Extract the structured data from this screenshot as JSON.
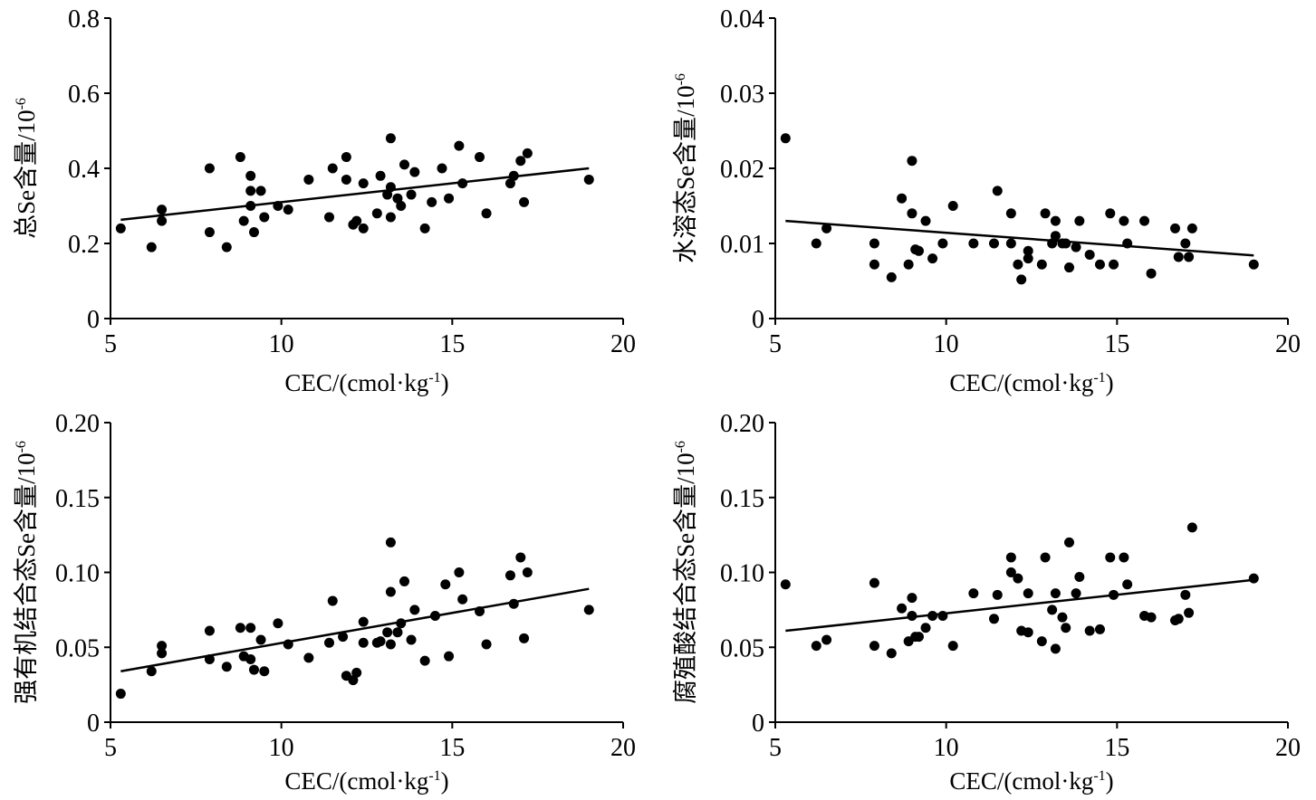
{
  "chart_data": [
    {
      "type": "scatter",
      "xlabel": "CEC/(cmol·kg",
      "xlabel_sup": "-1",
      "xlabel_end": ")",
      "ylabel": "总Se含量/10",
      "ylabel_sup": "-6",
      "xlim": [
        5,
        20
      ],
      "ylim": [
        0,
        0.8
      ],
      "xticks": [
        "5",
        "10",
        "15",
        "20"
      ],
      "yticks": [
        "0",
        "0.2",
        "0.4",
        "0.6",
        "0.8"
      ],
      "ytick_values": [
        0,
        0.2,
        0.4,
        0.6,
        0.8
      ],
      "trendline": {
        "x": [
          5.3,
          19.0
        ],
        "y": [
          0.263,
          0.4
        ]
      },
      "points": [
        [
          5.3,
          0.24
        ],
        [
          6.2,
          0.19
        ],
        [
          6.5,
          0.29
        ],
        [
          6.5,
          0.26
        ],
        [
          7.9,
          0.4
        ],
        [
          7.9,
          0.23
        ],
        [
          8.4,
          0.19
        ],
        [
          8.8,
          0.43
        ],
        [
          8.9,
          0.26
        ],
        [
          9.1,
          0.38
        ],
        [
          9.1,
          0.34
        ],
        [
          9.1,
          0.3
        ],
        [
          9.2,
          0.23
        ],
        [
          9.4,
          0.34
        ],
        [
          9.5,
          0.27
        ],
        [
          9.9,
          0.3
        ],
        [
          10.2,
          0.29
        ],
        [
          10.8,
          0.37
        ],
        [
          11.4,
          0.27
        ],
        [
          11.5,
          0.4
        ],
        [
          11.9,
          0.43
        ],
        [
          11.9,
          0.37
        ],
        [
          12.1,
          0.25
        ],
        [
          12.2,
          0.26
        ],
        [
          12.4,
          0.24
        ],
        [
          12.4,
          0.36
        ],
        [
          12.8,
          0.28
        ],
        [
          12.9,
          0.38
        ],
        [
          13.1,
          0.33
        ],
        [
          13.2,
          0.48
        ],
        [
          13.2,
          0.35
        ],
        [
          13.2,
          0.27
        ],
        [
          13.4,
          0.32
        ],
        [
          13.5,
          0.3
        ],
        [
          13.6,
          0.41
        ],
        [
          13.8,
          0.33
        ],
        [
          13.9,
          0.39
        ],
        [
          14.2,
          0.24
        ],
        [
          14.4,
          0.31
        ],
        [
          14.7,
          0.4
        ],
        [
          14.9,
          0.32
        ],
        [
          15.2,
          0.46
        ],
        [
          15.3,
          0.36
        ],
        [
          15.8,
          0.43
        ],
        [
          16.0,
          0.28
        ],
        [
          16.7,
          0.36
        ],
        [
          16.8,
          0.38
        ],
        [
          17.0,
          0.42
        ],
        [
          17.1,
          0.31
        ],
        [
          17.2,
          0.44
        ],
        [
          19.0,
          0.37
        ]
      ]
    },
    {
      "type": "scatter",
      "xlabel": "CEC/(cmol·kg",
      "xlabel_sup": "-1",
      "xlabel_end": ")",
      "ylabel": "水溶态Se含量/10",
      "ylabel_sup": "-6",
      "xlim": [
        5,
        20
      ],
      "ylim": [
        0,
        0.04
      ],
      "xticks": [
        "5",
        "10",
        "15",
        "20"
      ],
      "yticks": [
        "0",
        "0.01",
        "0.02",
        "0.03",
        "0.04"
      ],
      "ytick_values": [
        0,
        0.01,
        0.02,
        0.03,
        0.04
      ],
      "trendline": {
        "x": [
          5.3,
          19.0
        ],
        "y": [
          0.013,
          0.0084
        ]
      },
      "points": [
        [
          5.3,
          0.024
        ],
        [
          6.2,
          0.01
        ],
        [
          6.5,
          0.012
        ],
        [
          7.9,
          0.01
        ],
        [
          7.9,
          0.0072
        ],
        [
          8.4,
          0.0055
        ],
        [
          8.7,
          0.016
        ],
        [
          8.9,
          0.0072
        ],
        [
          9.0,
          0.021
        ],
        [
          9.0,
          0.014
        ],
        [
          9.1,
          0.0092
        ],
        [
          9.2,
          0.009
        ],
        [
          9.4,
          0.013
        ],
        [
          9.6,
          0.008
        ],
        [
          9.9,
          0.01
        ],
        [
          10.2,
          0.015
        ],
        [
          10.8,
          0.01
        ],
        [
          11.4,
          0.01
        ],
        [
          11.5,
          0.017
        ],
        [
          11.9,
          0.014
        ],
        [
          11.9,
          0.01
        ],
        [
          12.1,
          0.0072
        ],
        [
          12.2,
          0.0052
        ],
        [
          12.4,
          0.009
        ],
        [
          12.4,
          0.008
        ],
        [
          12.8,
          0.0072
        ],
        [
          12.9,
          0.014
        ],
        [
          13.1,
          0.01
        ],
        [
          13.2,
          0.013
        ],
        [
          13.2,
          0.011
        ],
        [
          13.4,
          0.01
        ],
        [
          13.5,
          0.01
        ],
        [
          13.6,
          0.0068
        ],
        [
          13.8,
          0.0095
        ],
        [
          13.9,
          0.013
        ],
        [
          14.2,
          0.0085
        ],
        [
          14.5,
          0.0072
        ],
        [
          14.8,
          0.014
        ],
        [
          14.9,
          0.0072
        ],
        [
          15.2,
          0.013
        ],
        [
          15.3,
          0.01
        ],
        [
          15.8,
          0.013
        ],
        [
          16.0,
          0.006
        ],
        [
          16.7,
          0.012
        ],
        [
          16.8,
          0.0082
        ],
        [
          17.0,
          0.01
        ],
        [
          17.1,
          0.0082
        ],
        [
          17.2,
          0.012
        ],
        [
          19.0,
          0.0072
        ]
      ]
    },
    {
      "type": "scatter",
      "xlabel": "CEC/(cmol·kg",
      "xlabel_sup": "-1",
      "xlabel_end": ")",
      "ylabel": "强有机结合态Se含量/10",
      "ylabel_sup": "-6",
      "xlim": [
        5,
        20
      ],
      "ylim": [
        0,
        0.2
      ],
      "xticks": [
        "5",
        "10",
        "15",
        "20"
      ],
      "yticks": [
        "0",
        "0.05",
        "0.10",
        "0.15",
        "0.20"
      ],
      "ytick_values": [
        0,
        0.05,
        0.1,
        0.15,
        0.2
      ],
      "trendline": {
        "x": [
          5.3,
          19.0
        ],
        "y": [
          0.034,
          0.089
        ]
      },
      "points": [
        [
          5.3,
          0.019
        ],
        [
          6.2,
          0.034
        ],
        [
          6.5,
          0.051
        ],
        [
          6.5,
          0.046
        ],
        [
          7.9,
          0.061
        ],
        [
          7.9,
          0.042
        ],
        [
          8.4,
          0.037
        ],
        [
          8.8,
          0.063
        ],
        [
          8.9,
          0.044
        ],
        [
          9.1,
          0.063
        ],
        [
          9.1,
          0.042
        ],
        [
          9.2,
          0.035
        ],
        [
          9.4,
          0.055
        ],
        [
          9.5,
          0.034
        ],
        [
          9.9,
          0.066
        ],
        [
          10.2,
          0.052
        ],
        [
          10.8,
          0.043
        ],
        [
          11.4,
          0.053
        ],
        [
          11.5,
          0.081
        ],
        [
          11.8,
          0.057
        ],
        [
          11.9,
          0.031
        ],
        [
          12.1,
          0.028
        ],
        [
          12.2,
          0.033
        ],
        [
          12.4,
          0.067
        ],
        [
          12.4,
          0.053
        ],
        [
          12.8,
          0.053
        ],
        [
          12.9,
          0.054
        ],
        [
          13.1,
          0.06
        ],
        [
          13.2,
          0.12
        ],
        [
          13.2,
          0.087
        ],
        [
          13.2,
          0.052
        ],
        [
          13.4,
          0.06
        ],
        [
          13.5,
          0.066
        ],
        [
          13.6,
          0.094
        ],
        [
          13.8,
          0.055
        ],
        [
          13.9,
          0.075
        ],
        [
          14.2,
          0.041
        ],
        [
          14.5,
          0.071
        ],
        [
          14.8,
          0.092
        ],
        [
          14.9,
          0.044
        ],
        [
          15.2,
          0.1
        ],
        [
          15.3,
          0.082
        ],
        [
          15.8,
          0.074
        ],
        [
          16.0,
          0.052
        ],
        [
          16.7,
          0.098
        ],
        [
          16.8,
          0.079
        ],
        [
          17.0,
          0.11
        ],
        [
          17.1,
          0.056
        ],
        [
          17.2,
          0.1
        ],
        [
          19.0,
          0.075
        ]
      ]
    },
    {
      "type": "scatter",
      "xlabel": "CEC/(cmol·kg",
      "xlabel_sup": "-1",
      "xlabel_end": ")",
      "ylabel": "腐殖酸结合态Se含量/10",
      "ylabel_sup": "-6",
      "xlim": [
        5,
        20
      ],
      "ylim": [
        0,
        0.2
      ],
      "xticks": [
        "5",
        "10",
        "15",
        "20"
      ],
      "yticks": [
        "0",
        "0.05",
        "0.10",
        "0.15",
        "0.20"
      ],
      "ytick_values": [
        0,
        0.05,
        0.1,
        0.15,
        0.2
      ],
      "trendline": {
        "x": [
          5.3,
          19.0
        ],
        "y": [
          0.061,
          0.095
        ]
      },
      "points": [
        [
          5.3,
          0.092
        ],
        [
          6.2,
          0.051
        ],
        [
          6.5,
          0.055
        ],
        [
          7.9,
          0.093
        ],
        [
          7.9,
          0.051
        ],
        [
          8.4,
          0.046
        ],
        [
          8.7,
          0.076
        ],
        [
          8.9,
          0.054
        ],
        [
          9.0,
          0.083
        ],
        [
          9.0,
          0.071
        ],
        [
          9.1,
          0.057
        ],
        [
          9.2,
          0.057
        ],
        [
          9.4,
          0.063
        ],
        [
          9.6,
          0.071
        ],
        [
          9.9,
          0.071
        ],
        [
          10.2,
          0.051
        ],
        [
          10.8,
          0.086
        ],
        [
          11.4,
          0.069
        ],
        [
          11.5,
          0.085
        ],
        [
          11.9,
          0.11
        ],
        [
          11.9,
          0.1
        ],
        [
          12.1,
          0.096
        ],
        [
          12.2,
          0.061
        ],
        [
          12.4,
          0.086
        ],
        [
          12.4,
          0.06
        ],
        [
          12.8,
          0.054
        ],
        [
          12.9,
          0.11
        ],
        [
          13.1,
          0.075
        ],
        [
          13.2,
          0.086
        ],
        [
          13.2,
          0.049
        ],
        [
          13.4,
          0.07
        ],
        [
          13.5,
          0.063
        ],
        [
          13.6,
          0.12
        ],
        [
          13.8,
          0.086
        ],
        [
          13.9,
          0.097
        ],
        [
          14.2,
          0.061
        ],
        [
          14.5,
          0.062
        ],
        [
          14.8,
          0.11
        ],
        [
          14.9,
          0.085
        ],
        [
          15.2,
          0.11
        ],
        [
          15.3,
          0.092
        ],
        [
          15.8,
          0.071
        ],
        [
          16.0,
          0.07
        ],
        [
          16.7,
          0.068
        ],
        [
          16.8,
          0.069
        ],
        [
          17.0,
          0.085
        ],
        [
          17.1,
          0.073
        ],
        [
          17.2,
          0.13
        ],
        [
          19.0,
          0.096
        ]
      ]
    }
  ]
}
